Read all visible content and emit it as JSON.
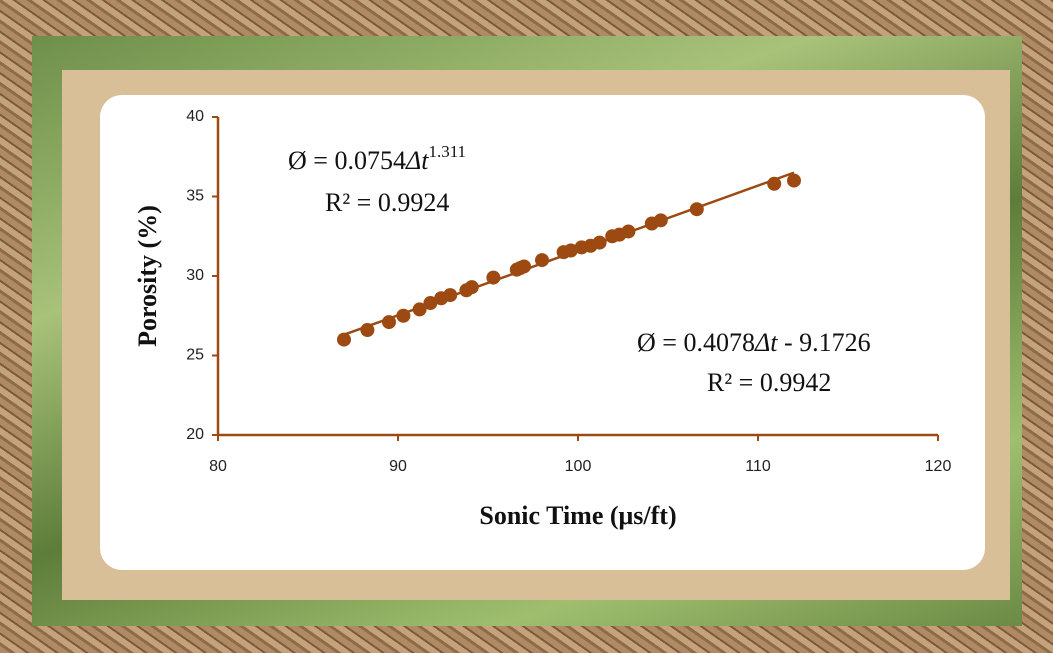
{
  "chart_data": {
    "type": "scatter",
    "x_label": "Sonic Time (μs/ft)",
    "y_label": "Porosity (%)",
    "color": "#9c4a12",
    "x": [
      87.0,
      88.3,
      89.5,
      90.3,
      91.2,
      91.8,
      92.4,
      92.9,
      93.8,
      94.1,
      95.3,
      96.6,
      96.8,
      97.0,
      98.0,
      99.2,
      99.6,
      100.2,
      100.7,
      101.2,
      101.9,
      102.3,
      102.8,
      104.1,
      104.6,
      106.6,
      110.9,
      112.0
    ],
    "values": [
      26.0,
      26.6,
      27.1,
      27.5,
      27.9,
      28.3,
      28.6,
      28.8,
      29.1,
      29.3,
      29.9,
      30.4,
      30.5,
      30.6,
      31.0,
      31.5,
      31.6,
      31.8,
      31.9,
      32.1,
      32.5,
      32.6,
      32.8,
      33.3,
      33.5,
      34.2,
      35.8,
      36.0
    ],
    "xlim": [
      80,
      120
    ],
    "xticks": [
      80,
      90,
      100,
      110,
      120
    ],
    "ylim": [
      20,
      40
    ],
    "yticks": [
      20,
      25,
      30,
      35,
      40
    ],
    "fits": [
      {
        "lhs": "Ø = ",
        "coef": 0.0754,
        "var": "Δt",
        "exponent": 1.311,
        "r2_label": "R² = ",
        "r2": 0.9924
      },
      {
        "lhs": "Ø = ",
        "coef": 0.4078,
        "var": "Δt",
        "intercept": {
          "value": -9.1726,
          "label": " - 9.1726"
        },
        "r2_label": "R² = ",
        "r2": 0.9942
      }
    ]
  }
}
